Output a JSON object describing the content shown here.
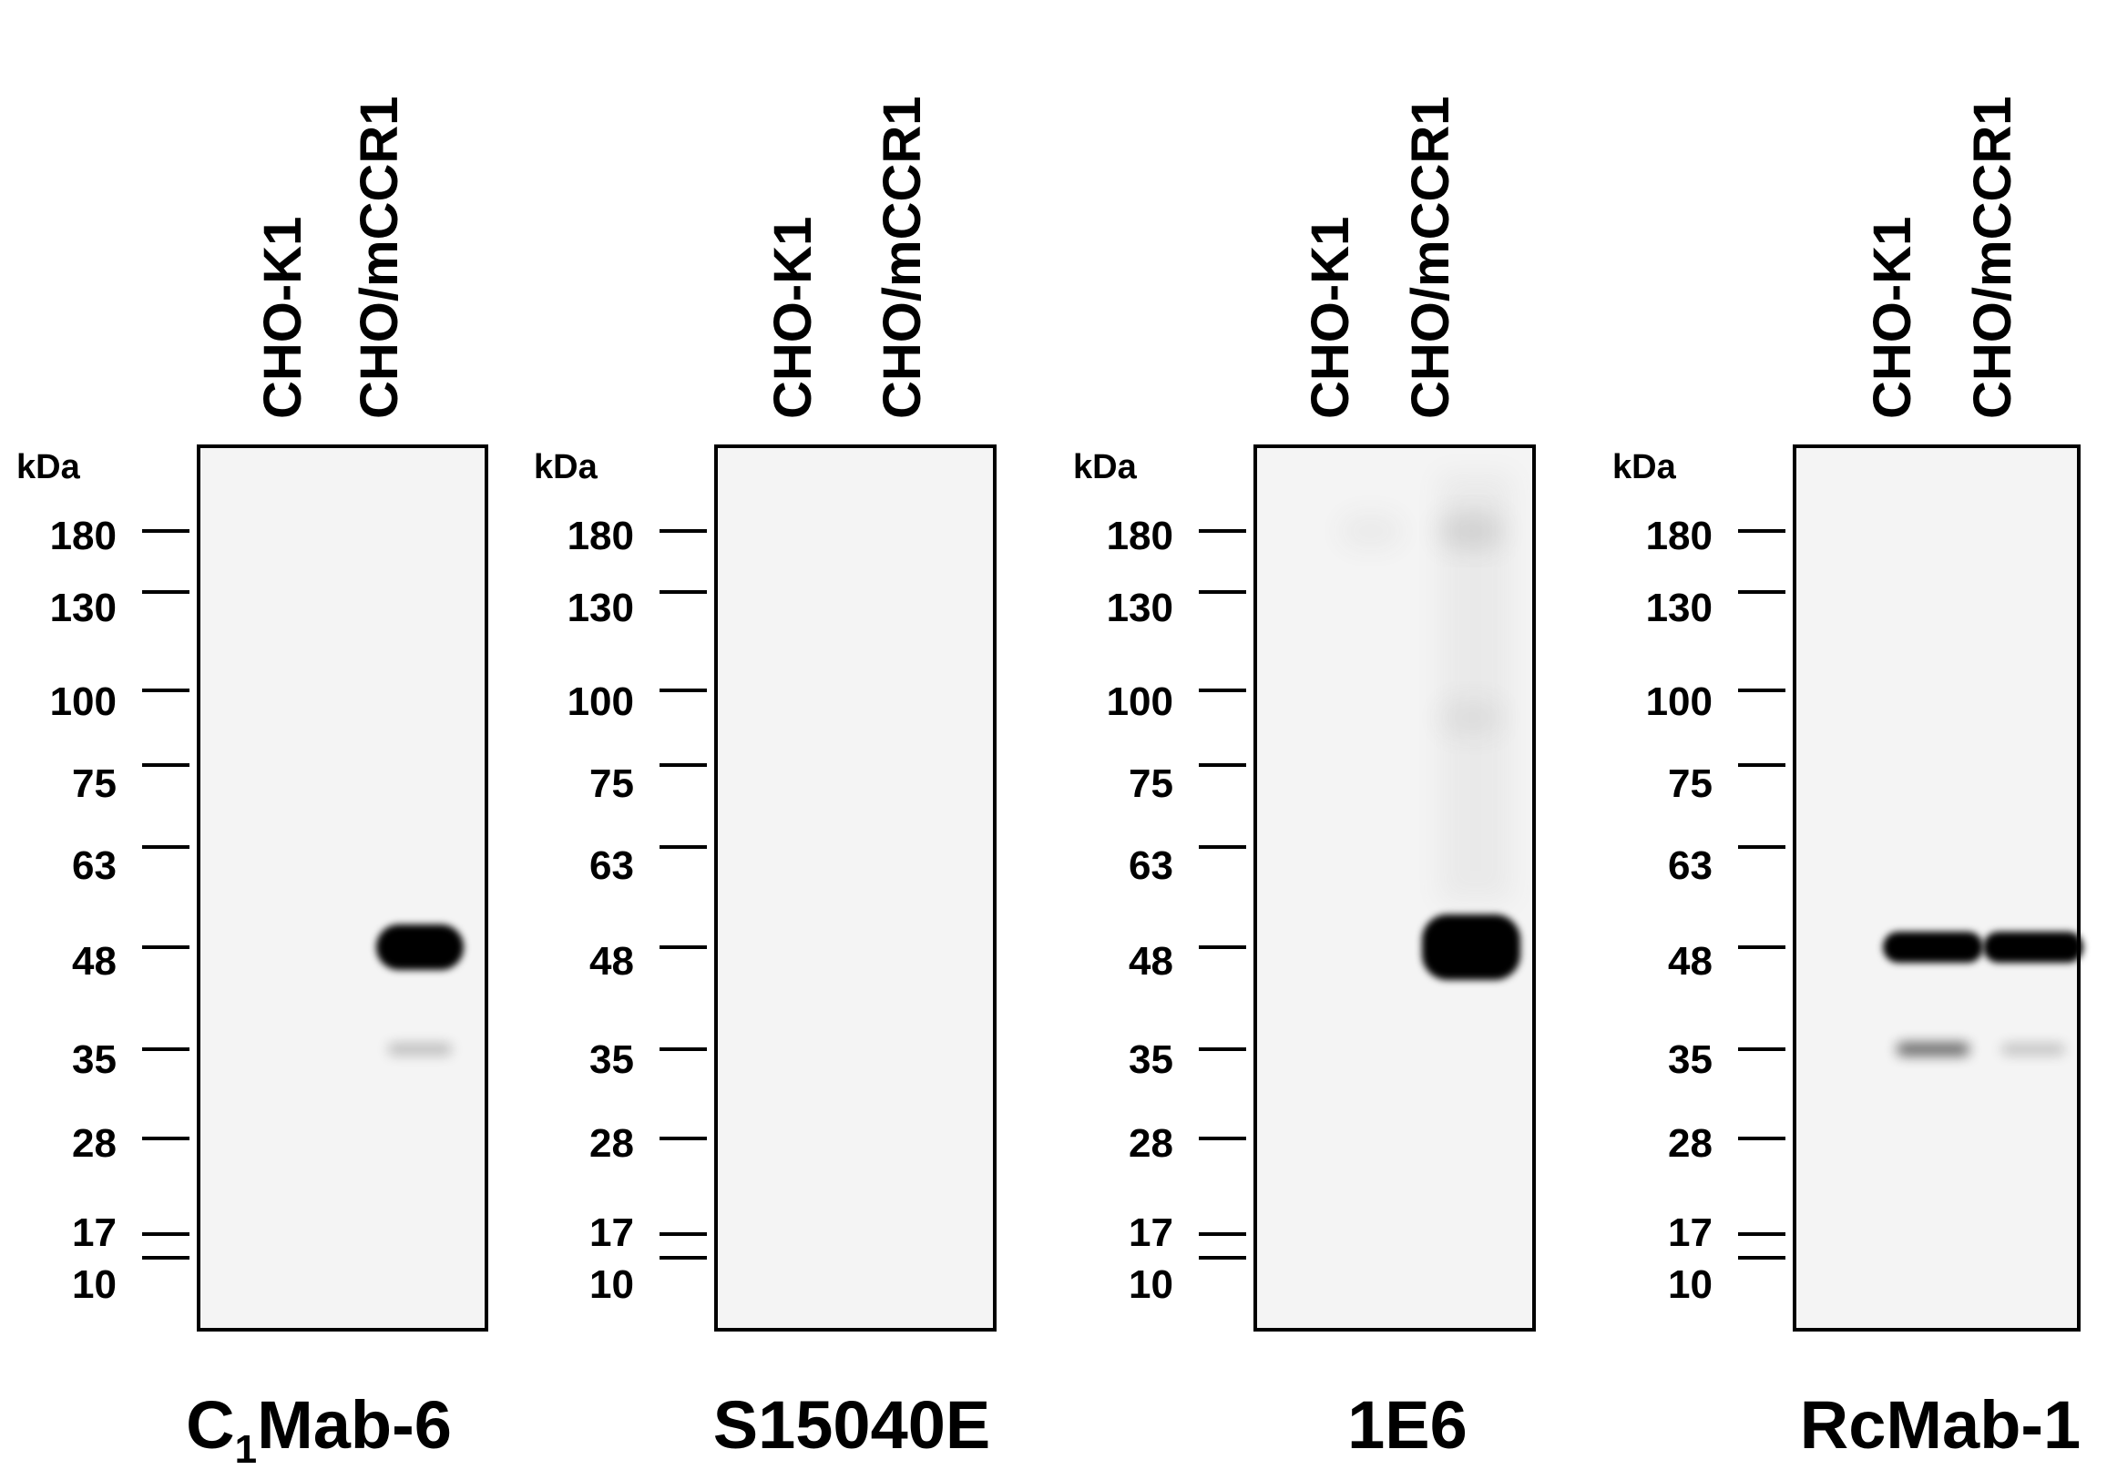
{
  "figure": {
    "axis_unit": "kDa",
    "marker_values": [
      "180",
      "130",
      "100",
      "75",
      "63",
      "48",
      "35",
      "28",
      "17",
      "10"
    ],
    "lane_labels": [
      "CHO-K1",
      "CHO/mCCR1"
    ],
    "panels": [
      {
        "antibody": {
          "main": "C",
          "sub": "1",
          "rest": "Mab-6"
        },
        "lanes": [
          "CHO-K1",
          "CHO/mCCR1"
        ],
        "bands": [
          {
            "lane": "CHO/mCCR1",
            "kda": 48,
            "intensity": 1.0
          },
          {
            "lane": "CHO/mCCR1",
            "kda": 35,
            "intensity": 0.15
          }
        ]
      },
      {
        "antibody": {
          "main": "S15040E",
          "sub": "",
          "rest": ""
        },
        "lanes": [
          "CHO-K1",
          "CHO/mCCR1"
        ],
        "bands": []
      },
      {
        "antibody": {
          "main": "1E6",
          "sub": "",
          "rest": ""
        },
        "lanes": [
          "CHO-K1",
          "CHO/mCCR1"
        ],
        "bands": [
          {
            "lane": "CHO/mCCR1",
            "kda": 48,
            "intensity": 1.0
          },
          {
            "lane": "CHO/mCCR1",
            "kda": 180,
            "intensity": 0.15
          },
          {
            "lane": "CHO/mCCR1",
            "kda": 90,
            "intensity": 0.08
          },
          {
            "lane": "CHO-K1",
            "kda": 180,
            "intensity": 0.05
          }
        ]
      },
      {
        "antibody": {
          "main": "RcMab-1",
          "sub": "",
          "rest": ""
        },
        "lanes": [
          "CHO-K1",
          "CHO/mCCR1"
        ],
        "bands": [
          {
            "lane": "CHO-K1",
            "kda": 48,
            "intensity": 1.0
          },
          {
            "lane": "CHO/mCCR1",
            "kda": 48,
            "intensity": 1.0
          },
          {
            "lane": "CHO-K1",
            "kda": 35,
            "intensity": 0.35
          },
          {
            "lane": "CHO/mCCR1",
            "kda": 35,
            "intensity": 0.12
          }
        ]
      }
    ]
  }
}
